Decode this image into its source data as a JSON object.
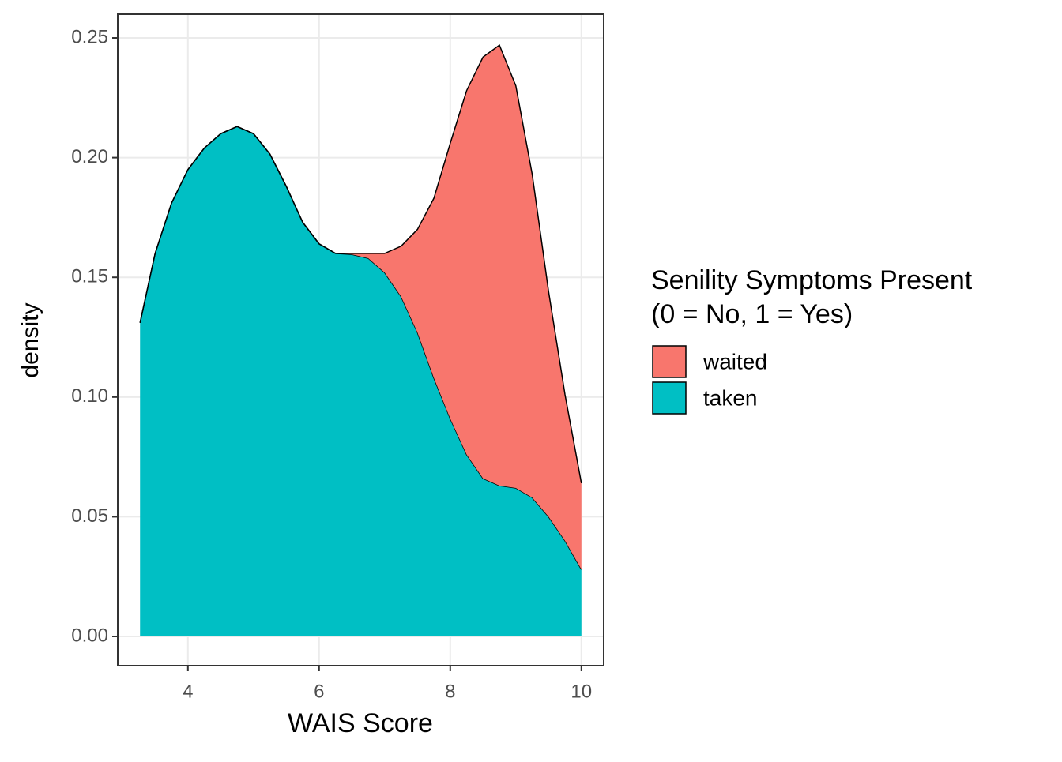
{
  "chart_data": {
    "type": "stacked_density",
    "x_label": "WAIS Score",
    "y_label": "density",
    "legend_title": [
      "Senility Symptoms Present",
      "(0 = No, 1 = Yes)"
    ],
    "x": [
      3.27,
      3.5,
      3.75,
      4,
      4.25,
      4.5,
      4.75,
      5,
      5.25,
      5.5,
      5.75,
      6,
      6.25,
      6.5,
      6.75,
      7,
      7.25,
      7.5,
      7.75,
      8,
      8.25,
      8.5,
      8.75,
      9,
      9.25,
      9.5,
      9.75,
      10
    ],
    "series": [
      {
        "name": "waited",
        "color": "#F8766D",
        "values": [
          0,
          0,
          0,
          0,
          0,
          0,
          0,
          0,
          0,
          0,
          0,
          0,
          0,
          0.0004,
          0.002,
          0.008,
          0.021,
          0.043,
          0.075,
          0.115,
          0.152,
          0.176,
          0.184,
          0.168,
          0.135,
          0.094,
          0.061,
          0.036
        ]
      },
      {
        "name": "taken",
        "color": "#00BFC4",
        "values": [
          0.131,
          0.16,
          0.181,
          0.195,
          0.204,
          0.21,
          0.213,
          0.21,
          0.2015,
          0.188,
          0.173,
          0.164,
          0.16,
          0.1596,
          0.158,
          0.152,
          0.142,
          0.127,
          0.108,
          0.091,
          0.076,
          0.066,
          0.063,
          0.062,
          0.058,
          0.05,
          0.04,
          0.028
        ]
      }
    ],
    "xlim": [
      2.93,
      10.34
    ],
    "xticks": [
      4,
      6,
      8,
      10
    ],
    "ylim": [
      -0.0122,
      0.2599
    ],
    "yticks": [
      {
        "value": 0,
        "label": "0.00"
      },
      {
        "value": 0.05,
        "label": "0.05"
      },
      {
        "value": 0.1,
        "label": "0.10"
      },
      {
        "value": 0.15,
        "label": "0.15"
      },
      {
        "value": 0.2,
        "label": "0.20"
      },
      {
        "value": 0.25,
        "label": "0.25"
      }
    ],
    "grid": true,
    "legend_position": "right"
  }
}
